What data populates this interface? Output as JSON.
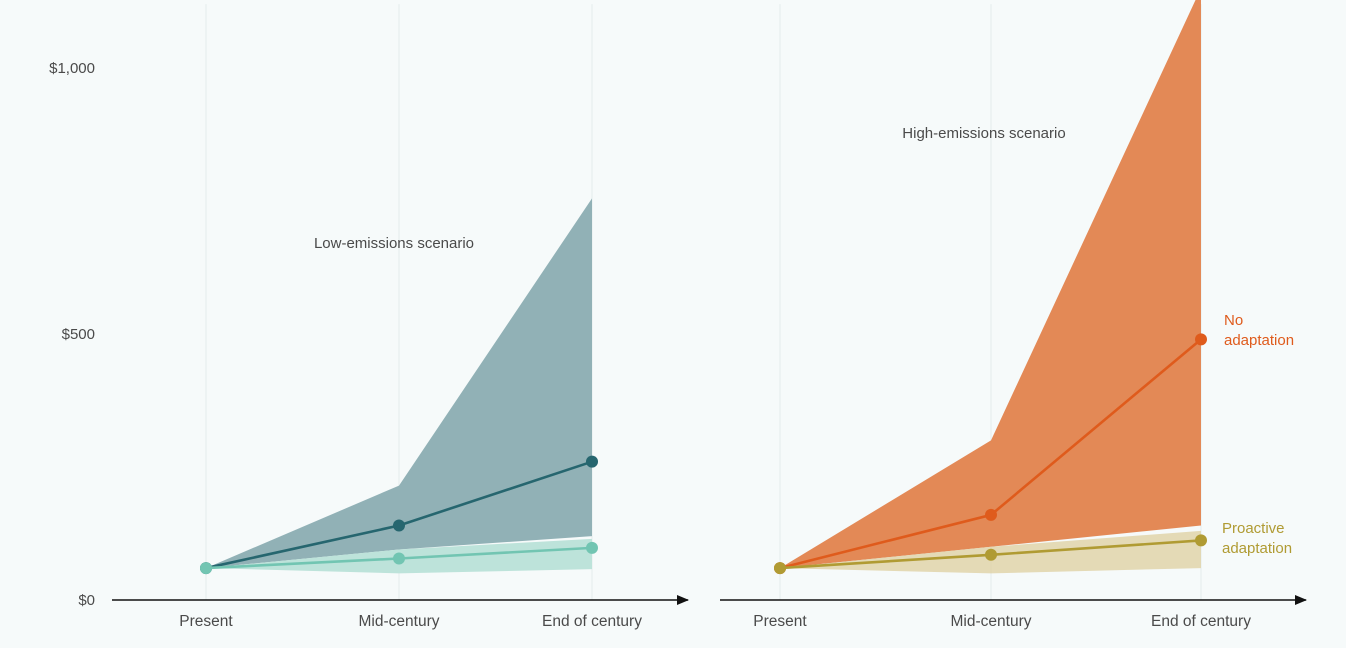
{
  "colors": {
    "background": "#f6fafa",
    "axis": "#111111",
    "text": "#4a4a4a",
    "gridline": "#e4ecec",
    "low_no_adaptation_band": "#91b1b6",
    "low_no_adaptation_line": "#26666f",
    "low_adaptation_band": "#bde3da",
    "low_adaptation_line": "#72c5b2",
    "high_no_adaptation_band": "#e38956",
    "high_no_adaptation_line": "#df5b1c",
    "high_adaptation_band": "#e0d4a9",
    "high_adaptation_line": "#b09b33",
    "high_adaptation_overlap": "#d7a36b"
  },
  "chart_data": [
    {
      "type": "line",
      "title": "Low-emissions scenario",
      "categories": [
        "Present",
        "Mid-century",
        "End of century"
      ],
      "yticks": [
        0,
        500,
        1000
      ],
      "ytick_labels": [
        "$0",
        "$500",
        "$1,000"
      ],
      "ylim": [
        0,
        1120
      ],
      "grid": false,
      "series": [
        {
          "key": "no_adaptation",
          "values": [
            60,
            140,
            260
          ],
          "band_low": [
            60,
            95,
            120
          ],
          "band_high": [
            60,
            215,
            755
          ]
        },
        {
          "key": "proactive_adaptation",
          "values": [
            60,
            78,
            98
          ],
          "band_low": [
            60,
            50,
            58
          ],
          "band_high": [
            60,
            95,
            115
          ]
        }
      ]
    },
    {
      "type": "line",
      "title": "High-emissions scenario",
      "categories": [
        "Present",
        "Mid-century",
        "End of century"
      ],
      "yticks": [
        0,
        500,
        1000
      ],
      "ylim": [
        0,
        1120
      ],
      "grid": false,
      "series": [
        {
          "key": "no_adaptation",
          "name": "No\nadaptation",
          "values": [
            60,
            160,
            490
          ],
          "band_low": [
            60,
            100,
            140
          ],
          "band_high": [
            60,
            300,
            1150
          ]
        },
        {
          "key": "proactive_adaptation",
          "name": "Proactive\nadaptation",
          "values": [
            60,
            85,
            112
          ],
          "band_low": [
            60,
            50,
            60
          ],
          "band_high": [
            60,
            100,
            130
          ]
        }
      ]
    }
  ]
}
